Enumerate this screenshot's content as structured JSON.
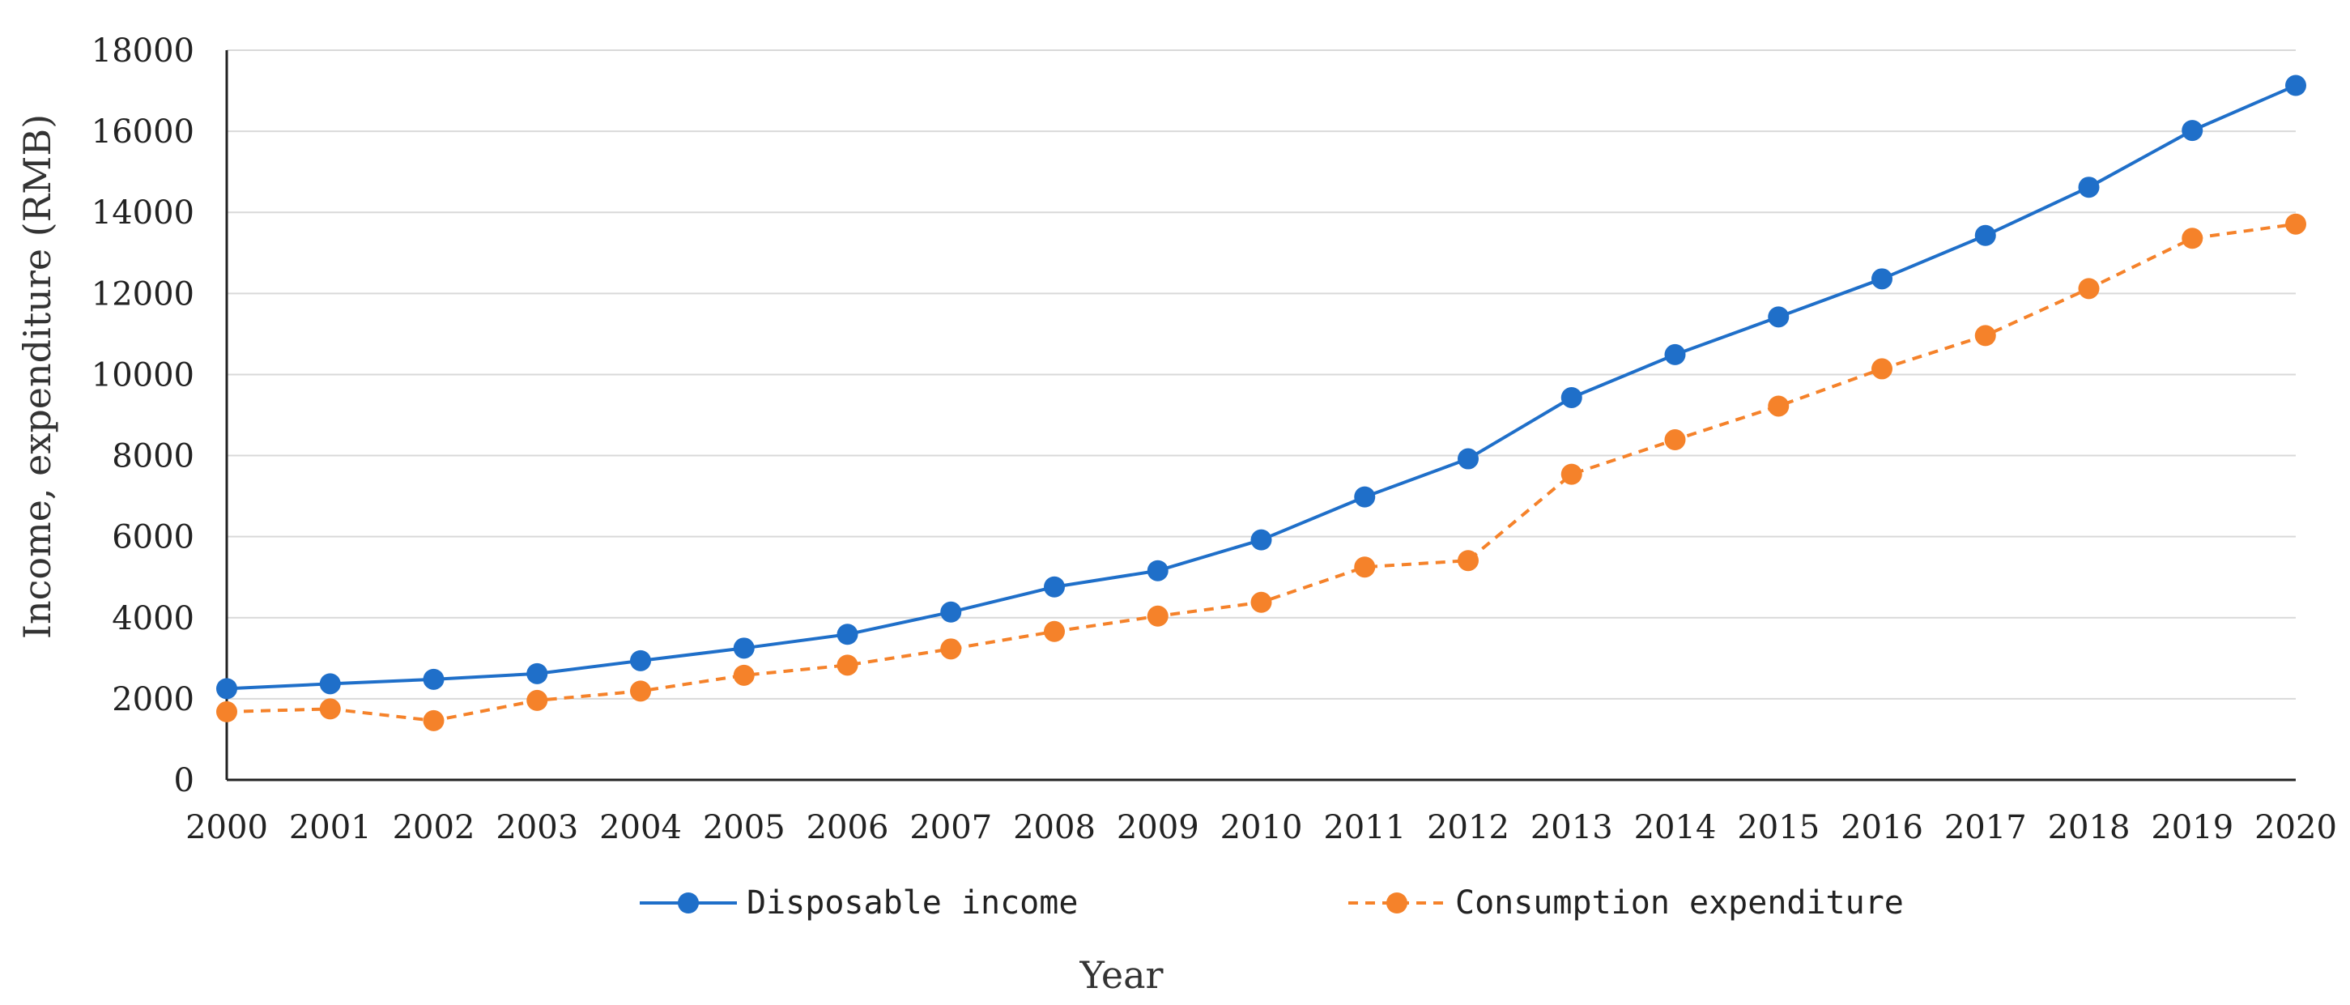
{
  "chart_data": {
    "type": "line",
    "title": "",
    "xlabel": "Year",
    "ylabel": "Income, expenditure (RMB)",
    "ylim": [
      0,
      18000
    ],
    "yticks": [
      0,
      2000,
      4000,
      6000,
      8000,
      10000,
      12000,
      14000,
      16000,
      18000
    ],
    "grid": "horizontal",
    "legend_position": "bottom",
    "categories": [
      "2000",
      "2001",
      "2002",
      "2003",
      "2004",
      "2005",
      "2006",
      "2007",
      "2008",
      "2009",
      "2010",
      "2011",
      "2012",
      "2013",
      "2014",
      "2015",
      "2016",
      "2017",
      "2018",
      "2019",
      "2020"
    ],
    "series": [
      {
        "name": "Disposable income",
        "color": "#1f6fc9",
        "line_style": "solid",
        "marker": "circle",
        "values": [
          2250,
          2370,
          2480,
          2620,
          2940,
          3250,
          3590,
          4140,
          4760,
          5160,
          5920,
          6980,
          7920,
          9430,
          10490,
          11420,
          12360,
          13430,
          14620,
          16020,
          17130
        ]
      },
      {
        "name": "Consumption expenditure",
        "color": "#f5822a",
        "line_style": "dashed",
        "marker": "circle",
        "values": [
          1680,
          1750,
          1460,
          1960,
          2190,
          2580,
          2830,
          3230,
          3660,
          4040,
          4380,
          5250,
          5410,
          7540,
          8390,
          9220,
          10140,
          10960,
          12120,
          13360,
          13710
        ]
      }
    ]
  }
}
